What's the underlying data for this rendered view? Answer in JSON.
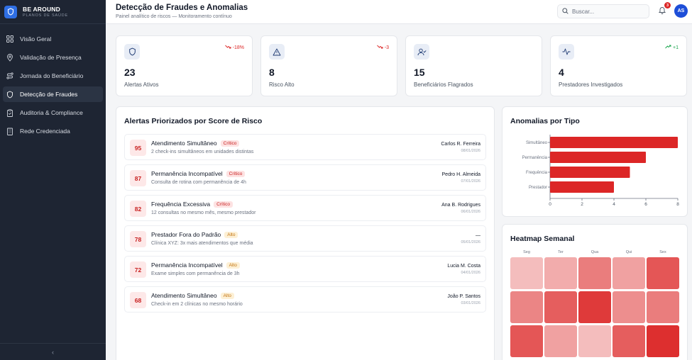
{
  "brand": {
    "name": "BE AROUND",
    "subtitle": "PLANOS DE SAÚDE"
  },
  "sidebar": {
    "items": [
      {
        "label": "Visão Geral",
        "icon": "grid-icon",
        "active": false
      },
      {
        "label": "Validação de Presença",
        "icon": "map-pin-icon",
        "active": false
      },
      {
        "label": "Jornada do Beneficiário",
        "icon": "route-icon",
        "active": false
      },
      {
        "label": "Detecção de Fraudes",
        "icon": "shield-icon",
        "active": true
      },
      {
        "label": "Auditoria & Compliance",
        "icon": "clipboard-check-icon",
        "active": false
      },
      {
        "label": "Rede Credenciada",
        "icon": "building-icon",
        "active": false
      }
    ],
    "collapse_glyph": "‹"
  },
  "header": {
    "title": "Detecção de Fraudes e Anomalias",
    "subtitle": "Painel analítico de riscos — Monitoramento contínuo",
    "search_placeholder": "Buscar...",
    "notification_count": "3",
    "avatar_initials": "AS"
  },
  "stats": [
    {
      "value": "23",
      "label": "Alertas Ativos",
      "trend": "-18%",
      "trend_dir": "down",
      "icon": "shield-icon"
    },
    {
      "value": "8",
      "label": "Risco Alto",
      "trend": "-3",
      "trend_dir": "down",
      "icon": "warning-icon"
    },
    {
      "value": "15",
      "label": "Beneficiários Flagrados",
      "trend": "",
      "trend_dir": "none",
      "icon": "user-check-icon"
    },
    {
      "value": "4",
      "label": "Prestadores Investigados",
      "trend": "+1",
      "trend_dir": "up",
      "icon": "activity-icon"
    }
  ],
  "alerts_panel": {
    "title": "Alertas Priorizados por Score de Risco",
    "alerts": [
      {
        "score": "95",
        "title": "Atendimento Simultâneo",
        "badge": "Crítico",
        "severity": "crit",
        "desc": "2 check-ins simultâneos em unidades distintas",
        "name": "Carlos R. Ferreira",
        "date": "08/01/2026"
      },
      {
        "score": "87",
        "title": "Permanência Incompatível",
        "badge": "Crítico",
        "severity": "crit",
        "desc": "Consulta de rotina com permanência de 4h",
        "name": "Pedro H. Almeida",
        "date": "07/01/2026"
      },
      {
        "score": "82",
        "title": "Frequência Excessiva",
        "badge": "Crítico",
        "severity": "crit",
        "desc": "12 consultas no mesmo mês, mesmo prestador",
        "name": "Ana B. Rodrigues",
        "date": "06/01/2026"
      },
      {
        "score": "78",
        "title": "Prestador Fora do Padrão",
        "badge": "Alto",
        "severity": "high",
        "desc": "Clínica XYZ: 3x mais atendimentos que média",
        "name": "—",
        "date": "05/01/2026"
      },
      {
        "score": "72",
        "title": "Permanência Incompatível",
        "badge": "Alto",
        "severity": "high",
        "desc": "Exame simples com permanência de 3h",
        "name": "Lucia M. Costa",
        "date": "04/01/2026"
      },
      {
        "score": "68",
        "title": "Atendimento Simultâneo",
        "badge": "Alto",
        "severity": "high",
        "desc": "Check-in em 2 clínicas no mesmo horário",
        "name": "João P. Santos",
        "date": "03/01/2026"
      }
    ]
  },
  "anomalies_panel": {
    "title": "Anomalias por Tipo",
    "bar_color": "#dc2626"
  },
  "chart_data": {
    "type": "bar",
    "orientation": "horizontal",
    "categories": [
      "Simultâneo",
      "Permanência",
      "Frequência",
      "Prestador"
    ],
    "values": [
      8,
      6,
      5,
      4
    ],
    "xticks": [
      "0",
      "2",
      "4",
      "6",
      "8"
    ],
    "xlim": [
      0,
      8
    ],
    "grid": false
  },
  "heatmap_panel": {
    "title": "Heatmap Semanal",
    "days": [
      "Seg",
      "Ter",
      "Qua",
      "Qui",
      "Sex"
    ],
    "rows": [
      [
        0.2,
        0.3,
        0.55,
        0.35,
        0.75
      ],
      [
        0.5,
        0.7,
        0.9,
        0.45,
        0.55
      ],
      [
        0.75,
        0.35,
        0.2,
        0.7,
        0.95
      ]
    ],
    "base_color": "#dc2626"
  }
}
